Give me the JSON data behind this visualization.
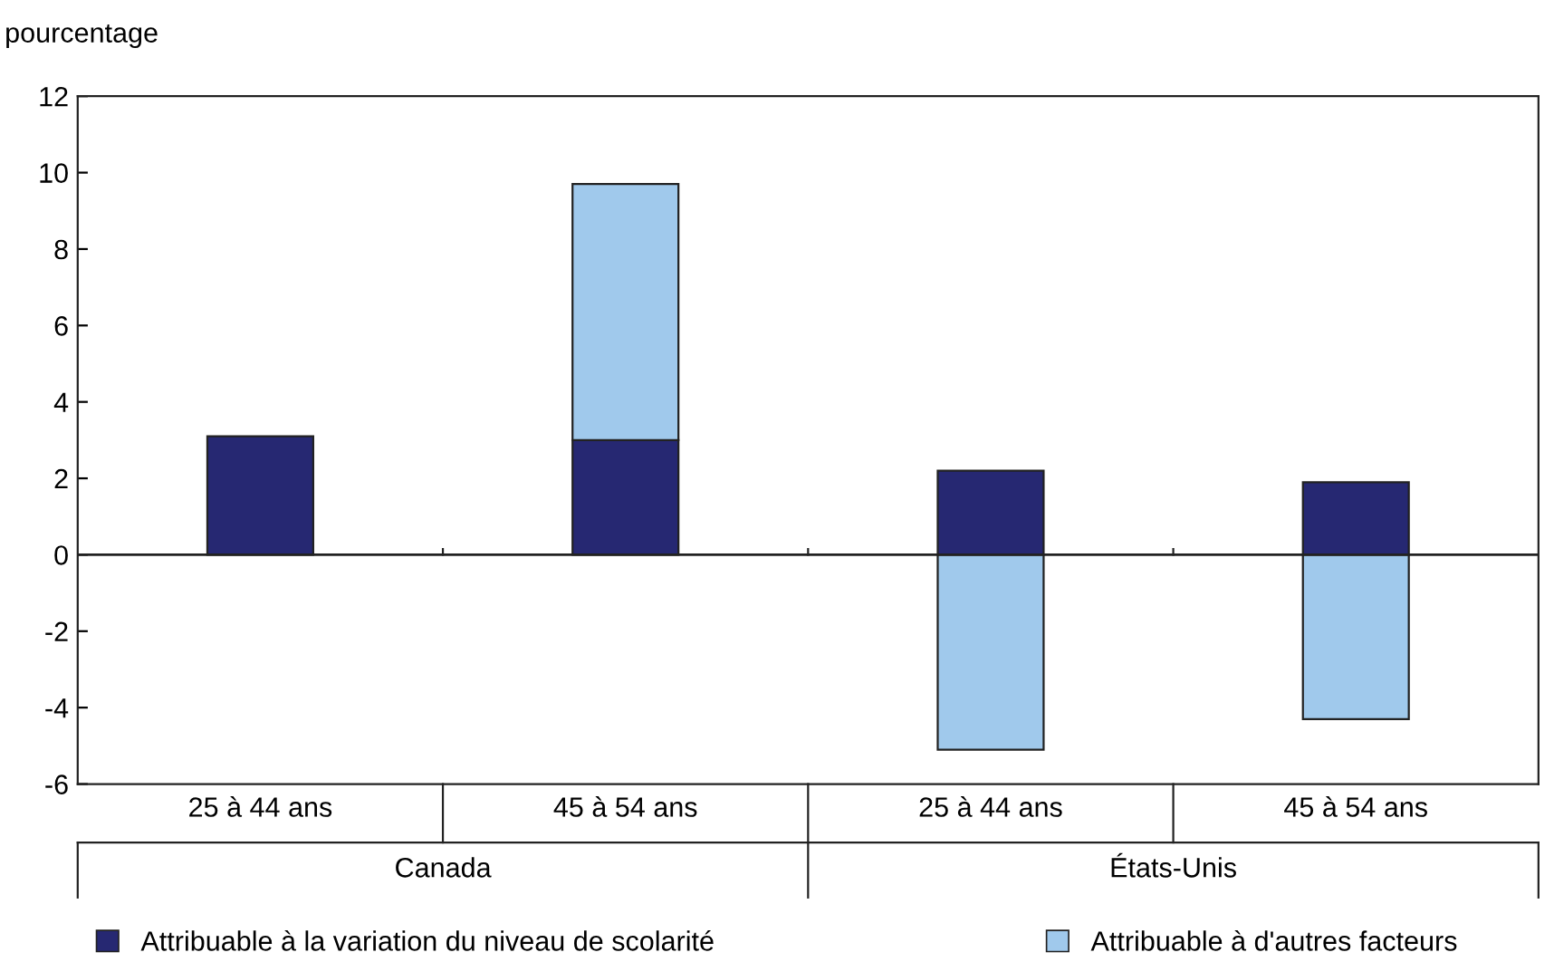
{
  "chart_data": {
    "type": "bar",
    "stacked": true,
    "ylabel": "pourcentage",
    "categories": [
      "25 à 44 ans",
      "45 à 54 ans",
      "25 à 44 ans",
      "45 à 54 ans"
    ],
    "annotations": [
      "Canada",
      "États-Unis"
    ],
    "series": [
      {
        "name": "Attribuable à la variation du niveau de scolarité",
        "color": "#262872",
        "values": [
          3.1,
          3.0,
          2.2,
          1.9
        ]
      },
      {
        "name": "Attribuable à d'autres facteurs",
        "color": "#a0c9ec",
        "values": [
          null,
          6.7,
          -5.1,
          -4.3
        ]
      }
    ],
    "ref_lines": [
      {
        "axis": "y",
        "value": 0,
        "color": "#222222"
      }
    ],
    "ylim": [
      -6,
      12
    ],
    "yticks": [
      -6,
      -4,
      -2,
      0,
      2,
      4,
      6,
      8,
      10,
      12
    ],
    "grid": false,
    "legend": "bottom"
  }
}
